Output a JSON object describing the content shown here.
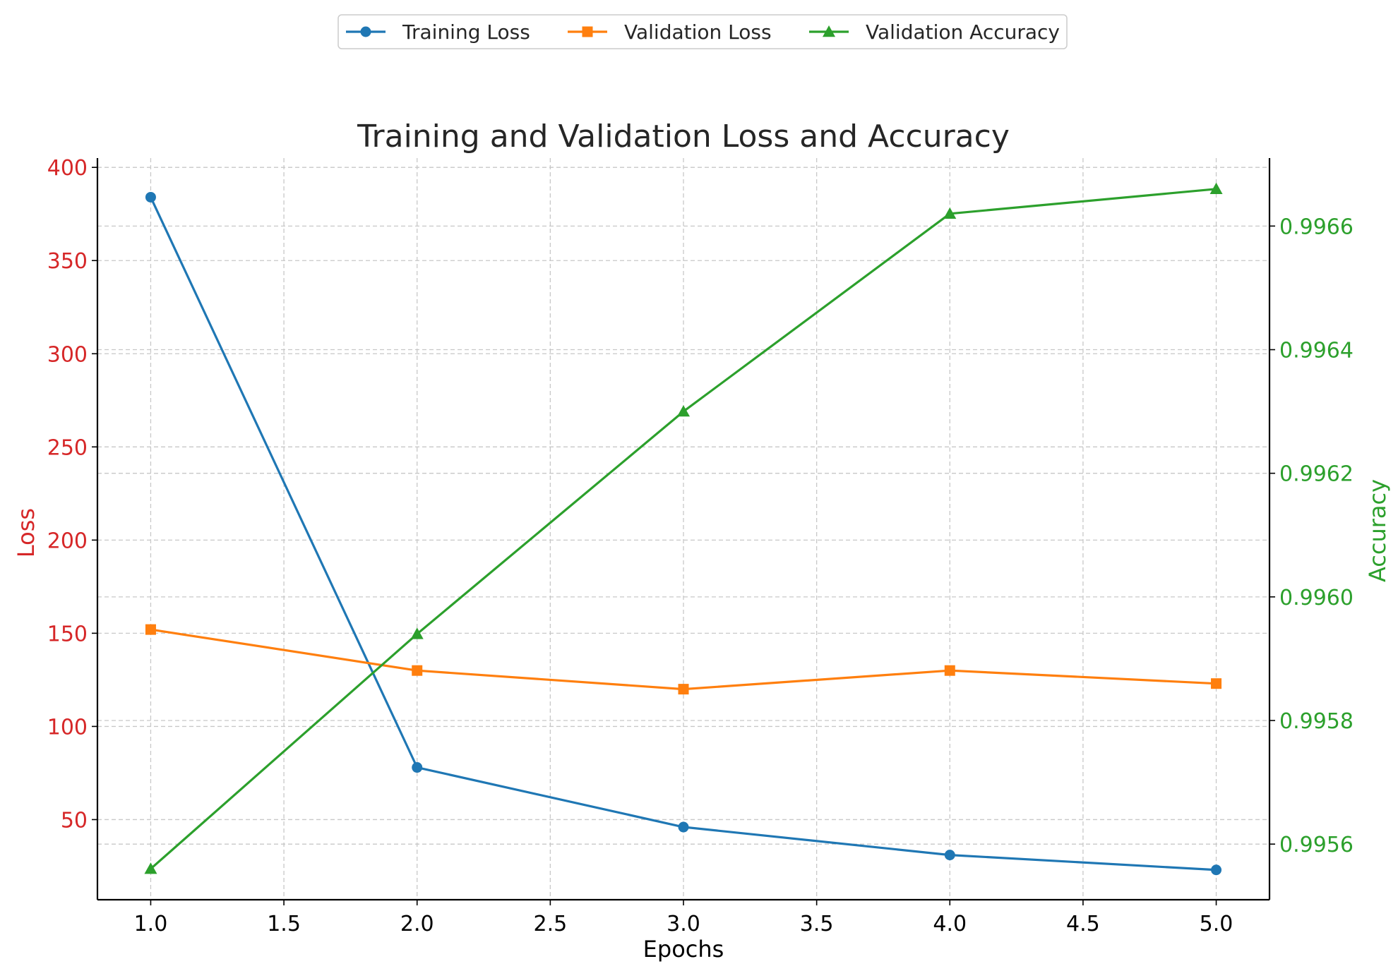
{
  "chart_data": {
    "type": "line",
    "title": "Training and Validation Loss and Accuracy",
    "xlabel": "Epochs",
    "ylabel_left": "Loss",
    "ylabel_right": "Accuracy",
    "x": [
      1,
      2,
      3,
      4,
      5
    ],
    "xlim": [
      0.8,
      5.2
    ],
    "xticks": [
      1.0,
      1.5,
      2.0,
      2.5,
      3.0,
      3.5,
      4.0,
      4.5,
      5.0
    ],
    "xtick_labels": [
      "1.0",
      "1.5",
      "2.0",
      "2.5",
      "3.0",
      "3.5",
      "4.0",
      "4.5",
      "5.0"
    ],
    "ylim_left": [
      7,
      405
    ],
    "yticks_left": [
      50,
      100,
      150,
      200,
      250,
      300,
      350,
      400
    ],
    "ytick_labels_left": [
      "50",
      "100",
      "150",
      "200",
      "250",
      "300",
      "350",
      "400"
    ],
    "ylim_right": [
      0.99551,
      0.99671
    ],
    "yticks_right": [
      0.9956,
      0.9958,
      0.996,
      0.9962,
      0.9964,
      0.9966
    ],
    "ytick_labels_right": [
      "0.9956",
      "0.9958",
      "0.9960",
      "0.9962",
      "0.9964",
      "0.9966"
    ],
    "grid": true,
    "legend_position": "top-center",
    "series": [
      {
        "name": "Training Loss",
        "axis": "left",
        "marker": "circle",
        "color": "#1f77b4",
        "values": [
          384,
          78,
          46,
          31,
          23
        ]
      },
      {
        "name": "Validation Loss",
        "axis": "left",
        "marker": "square",
        "color": "#ff7f0e",
        "values": [
          152,
          130,
          120,
          130,
          123
        ]
      },
      {
        "name": "Validation Accuracy",
        "axis": "right",
        "marker": "triangle",
        "color": "#2ca02c",
        "values": [
          0.99556,
          0.99594,
          0.9963,
          0.99662,
          0.99666
        ]
      }
    ],
    "left_axis_color": "#d62728",
    "right_axis_color": "#2ca02c"
  }
}
